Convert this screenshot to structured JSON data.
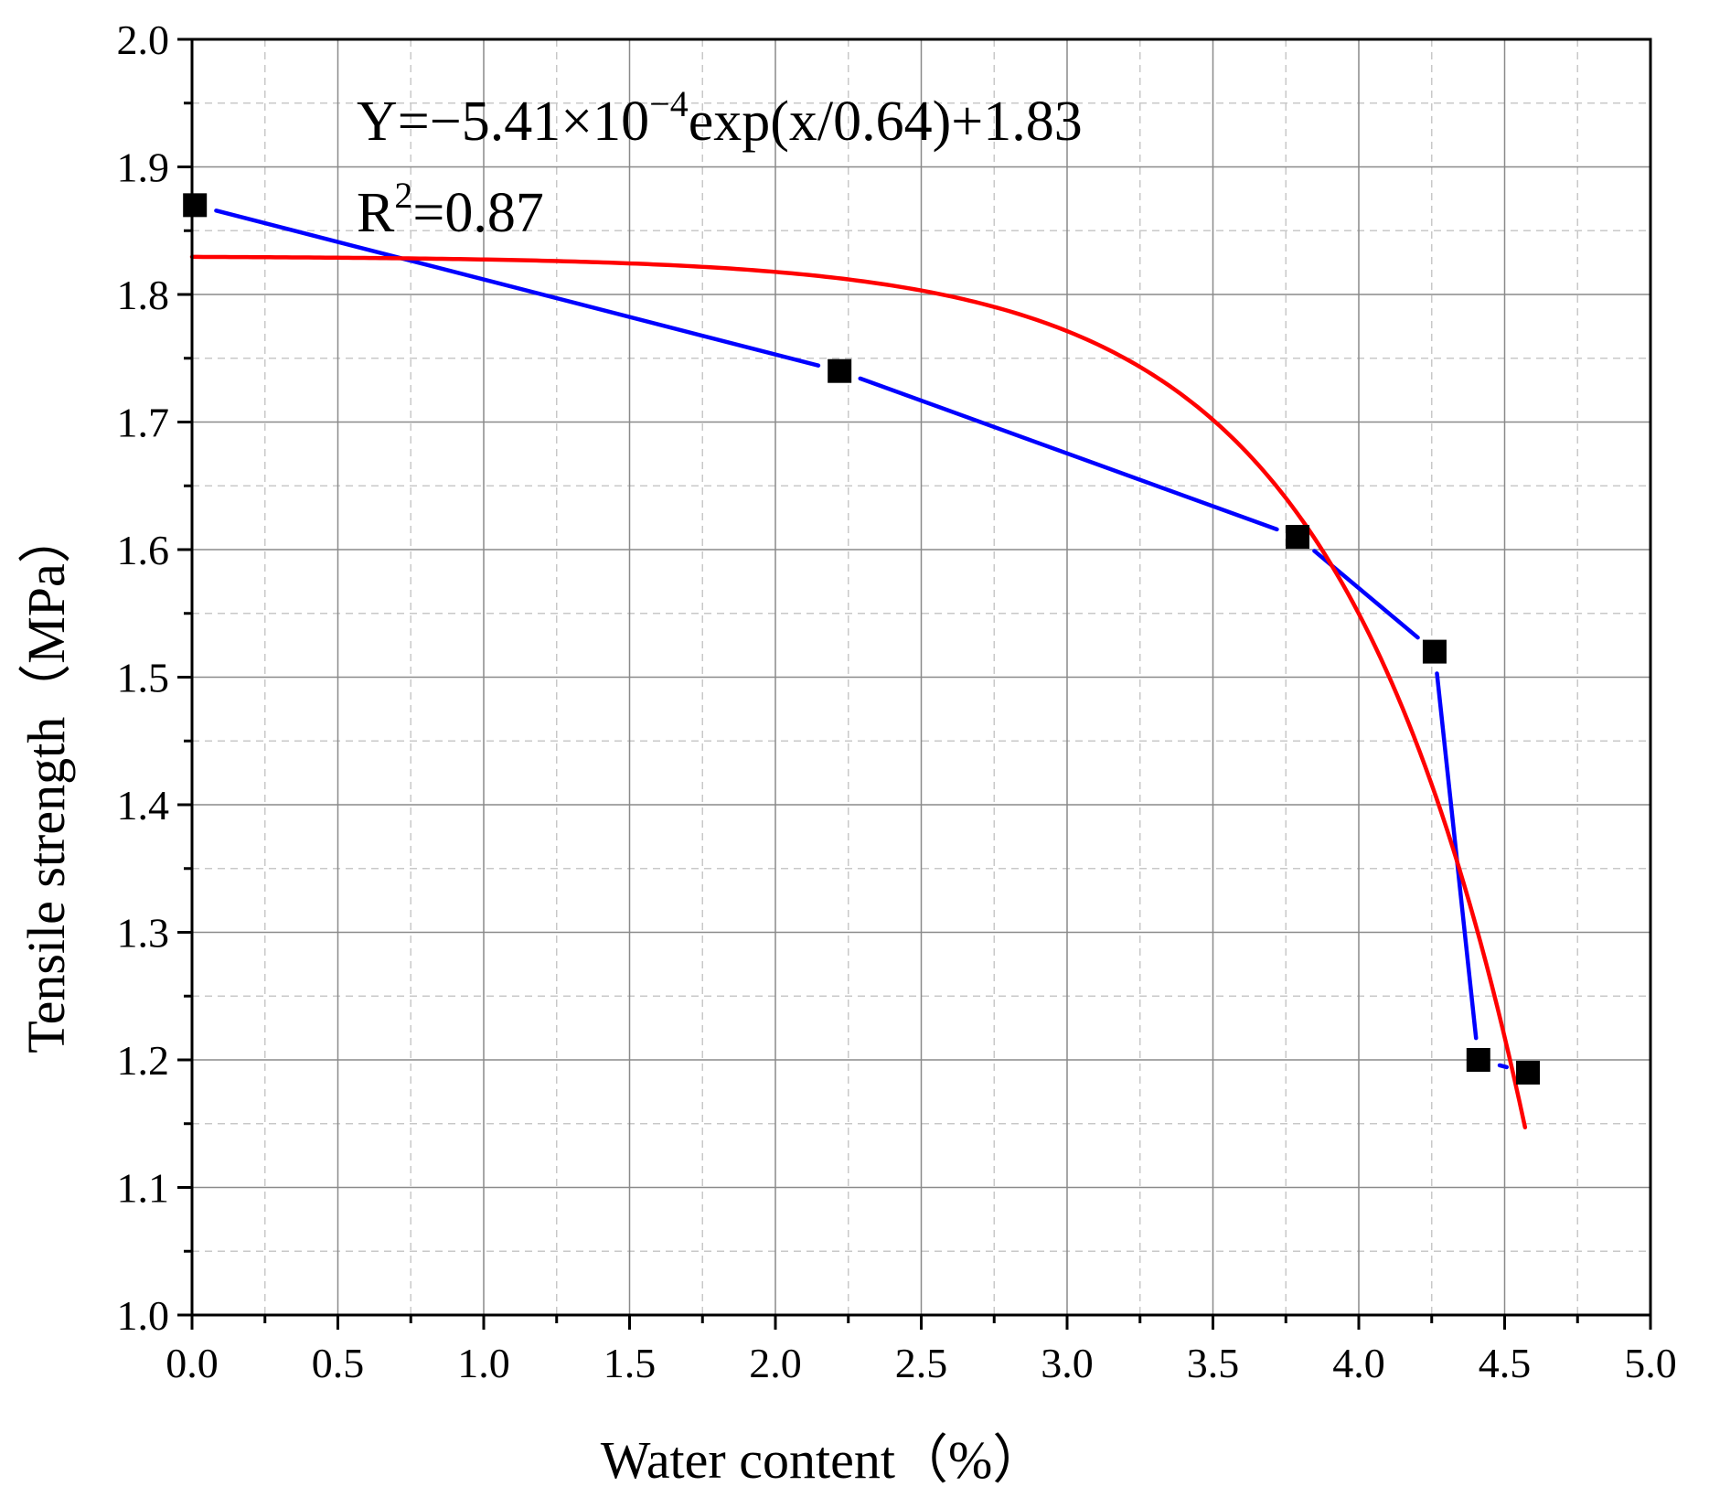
{
  "chart_data": {
    "type": "line",
    "xlabel": "Water content（%）",
    "ylabel": "Tensile strength（MPa）",
    "xlim": [
      0.0,
      5.0
    ],
    "ylim": [
      1.0,
      2.0
    ],
    "x_ticks": [
      "0.0",
      "0.5",
      "1.0",
      "1.5",
      "2.0",
      "2.5",
      "3.0",
      "3.5",
      "4.0",
      "4.5",
      "5.0"
    ],
    "y_ticks": [
      "1.0",
      "1.1",
      "1.2",
      "1.3",
      "1.4",
      "1.5",
      "1.6",
      "1.7",
      "1.8",
      "1.9",
      "2.0"
    ],
    "grid": true,
    "annotation": {
      "equation_prefix": "Y=−5.41×10",
      "equation_exponent": "−4",
      "equation_suffix": "exp(x/0.64)+1.83",
      "r2_prefix": "R",
      "r2_exponent": "2",
      "r2_suffix": "=0.87"
    },
    "series": [
      {
        "points": [
          {
            "x": 0.01,
            "y": 1.87
          },
          {
            "x": 2.22,
            "y": 1.74
          },
          {
            "x": 3.79,
            "y": 1.61
          },
          {
            "x": 4.26,
            "y": 1.52
          },
          {
            "x": 4.41,
            "y": 1.2
          },
          {
            "x": 4.58,
            "y": 1.19
          }
        ],
        "color": "#0000ff",
        "marker": "square",
        "marker_color": "#000000"
      }
    ],
    "fit": {
      "a": -0.000541,
      "b": 0.64,
      "c": 1.83,
      "x_range": [
        0.0,
        4.57
      ],
      "color": "#ff0000"
    }
  }
}
